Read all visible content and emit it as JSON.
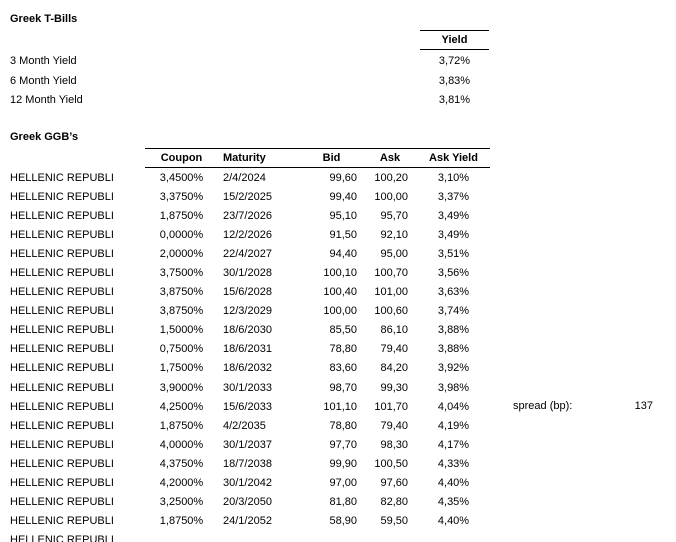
{
  "tbills": {
    "title": "Greek T-Bills",
    "yield_header": "Yield",
    "rows": [
      {
        "label": "3 Month Yield",
        "value": "3,72%"
      },
      {
        "label": "6 Month Yield",
        "value": "3,83%"
      },
      {
        "label": "12 Month Yield",
        "value": "3,81%"
      }
    ]
  },
  "ggb": {
    "title": "Greek GGB’s",
    "columns": [
      {
        "key": "coupon",
        "label": "Coupon"
      },
      {
        "key": "maturity",
        "label": "Maturity"
      },
      {
        "key": "bid",
        "label": "Bid"
      },
      {
        "key": "ask",
        "label": "Ask"
      },
      {
        "key": "ask_yield",
        "label": "Ask Yield"
      }
    ],
    "rows": [
      {
        "issuer": "HELLENIC REPUBLI",
        "coupon": "3,4500%",
        "maturity": "2/4/2024",
        "bid": "99,60",
        "ask": "100,20",
        "ask_yield": "3,10%"
      },
      {
        "issuer": "HELLENIC REPUBLI",
        "coupon": "3,3750%",
        "maturity": "15/2/2025",
        "bid": "99,40",
        "ask": "100,00",
        "ask_yield": "3,37%"
      },
      {
        "issuer": "HELLENIC REPUBLI",
        "coupon": "1,8750%",
        "maturity": "23/7/2026",
        "bid": "95,10",
        "ask": "95,70",
        "ask_yield": "3,49%"
      },
      {
        "issuer": "HELLENIC REPUBLI",
        "coupon": "0,0000%",
        "maturity": "12/2/2026",
        "bid": "91,50",
        "ask": "92,10",
        "ask_yield": "3,49%"
      },
      {
        "issuer": "HELLENIC REPUBLI",
        "coupon": "2,0000%",
        "maturity": "22/4/2027",
        "bid": "94,40",
        "ask": "95,00",
        "ask_yield": "3,51%"
      },
      {
        "issuer": "HELLENIC REPUBLI",
        "coupon": "3,7500%",
        "maturity": "30/1/2028",
        "bid": "100,10",
        "ask": "100,70",
        "ask_yield": "3,56%"
      },
      {
        "issuer": "HELLENIC REPUBLI",
        "coupon": "3,8750%",
        "maturity": "15/6/2028",
        "bid": "100,40",
        "ask": "101,00",
        "ask_yield": "3,63%"
      },
      {
        "issuer": "HELLENIC REPUBLI",
        "coupon": "3,8750%",
        "maturity": "12/3/2029",
        "bid": "100,00",
        "ask": "100,60",
        "ask_yield": "3,74%"
      },
      {
        "issuer": "HELLENIC REPUBLI",
        "coupon": "1,5000%",
        "maturity": "18/6/2030",
        "bid": "85,50",
        "ask": "86,10",
        "ask_yield": "3,88%"
      },
      {
        "issuer": "HELLENIC REPUBLI",
        "coupon": "0,7500%",
        "maturity": "18/6/2031",
        "bid": "78,80",
        "ask": "79,40",
        "ask_yield": "3,88%"
      },
      {
        "issuer": "HELLENIC REPUBLI",
        "coupon": "1,7500%",
        "maturity": "18/6/2032",
        "bid": "83,60",
        "ask": "84,20",
        "ask_yield": "3,92%"
      },
      {
        "issuer": "HELLENIC REPUBLI",
        "coupon": "3,9000%",
        "maturity": "30/1/2033",
        "bid": "98,70",
        "ask": "99,30",
        "ask_yield": "3,98%"
      },
      {
        "issuer": "HELLENIC REPUBLI",
        "coupon": "4,2500%",
        "maturity": "15/6/2033",
        "bid": "101,10",
        "ask": "101,70",
        "ask_yield": "4,04%"
      },
      {
        "issuer": "HELLENIC REPUBLI",
        "coupon": "1,8750%",
        "maturity": "4/2/2035",
        "bid": "78,80",
        "ask": "79,40",
        "ask_yield": "4,19%"
      },
      {
        "issuer": "HELLENIC REPUBLI",
        "coupon": "4,0000%",
        "maturity": "30/1/2037",
        "bid": "97,70",
        "ask": "98,30",
        "ask_yield": "4,17%"
      },
      {
        "issuer": "HELLENIC REPUBLI",
        "coupon": "4,3750%",
        "maturity": "18/7/2038",
        "bid": "99,90",
        "ask": "100,50",
        "ask_yield": "4,33%"
      },
      {
        "issuer": "HELLENIC REPUBLI",
        "coupon": "4,2000%",
        "maturity": "30/1/2042",
        "bid": "97,00",
        "ask": "97,60",
        "ask_yield": "4,40%"
      },
      {
        "issuer": "HELLENIC REPUBLI",
        "coupon": "3,2500%",
        "maturity": "20/3/2050",
        "bid": "81,80",
        "ask": "82,80",
        "ask_yield": "4,35%"
      },
      {
        "issuer": "HELLENIC REPUBLI",
        "coupon": "1,8750%",
        "maturity": "24/1/2052",
        "bid": "58,90",
        "ask": "59,50",
        "ask_yield": "4,40%"
      }
    ],
    "clipped_row": {
      "issuer": "HELLENIC REPUBLI"
    }
  },
  "spread": {
    "label": "spread (bp):",
    "value": "137"
  },
  "colors": {
    "text": "#000000",
    "background": "#ffffff",
    "rule": "#000000"
  }
}
